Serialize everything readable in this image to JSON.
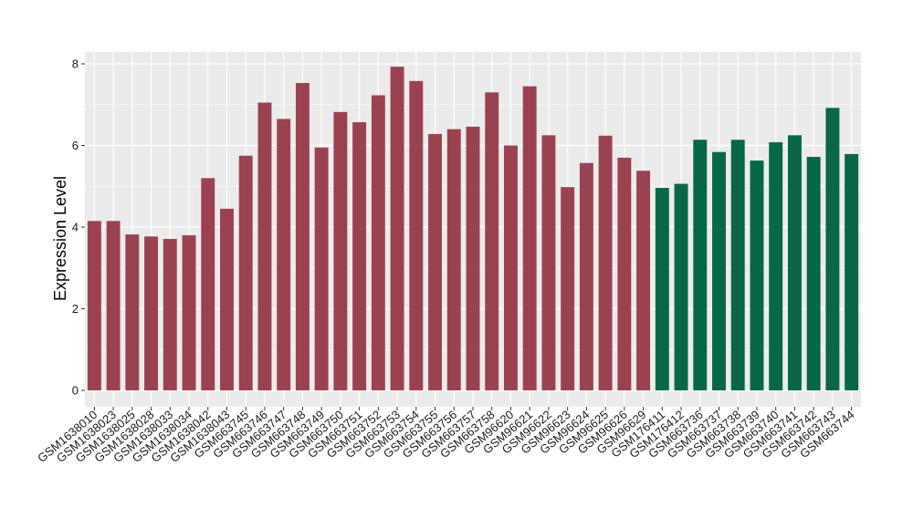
{
  "chart_data": {
    "type": "bar",
    "title": "",
    "xlabel": "",
    "ylabel": "Expression Level",
    "ylim": [
      0,
      8.3
    ],
    "yticks": [
      0,
      2,
      4,
      6,
      8
    ],
    "grid": true,
    "panel_background": "#ebebeb",
    "gridline_color": "#ffffff",
    "categories": [
      "GSM1638010",
      "GSM1638023",
      "GSM1638025",
      "GSM1638028",
      "GSM1638033",
      "GSM1638034",
      "GSM1638042",
      "GSM1638043",
      "GSM663745",
      "GSM663746",
      "GSM663747",
      "GSM663748",
      "GSM663749",
      "GSM663750",
      "GSM663751",
      "GSM663752",
      "GSM663753",
      "GSM663754",
      "GSM663755",
      "GSM663756",
      "GSM663757",
      "GSM663758",
      "GSM96620",
      "GSM96621",
      "GSM96622",
      "GSM96623",
      "GSM96624",
      "GSM96625",
      "GSM96626",
      "GSM96629",
      "GSM176411",
      "GSM176412",
      "GSM663736",
      "GSM663737",
      "GSM663738",
      "GSM663739",
      "GSM663740",
      "GSM663741",
      "GSM663742",
      "GSM663743",
      "GSM663744"
    ],
    "values": [
      4.15,
      4.15,
      3.82,
      3.77,
      3.71,
      3.8,
      5.2,
      4.45,
      5.75,
      7.05,
      6.65,
      7.53,
      5.95,
      6.82,
      6.57,
      7.23,
      7.93,
      7.58,
      6.28,
      6.4,
      6.46,
      7.3,
      6.0,
      7.45,
      6.25,
      4.98,
      5.57,
      6.24,
      5.7,
      5.38,
      4.96,
      5.06,
      6.14,
      5.84,
      6.14,
      5.63,
      6.08,
      6.25,
      5.72,
      6.92,
      5.79
    ],
    "groups": [
      "a",
      "a",
      "a",
      "a",
      "a",
      "a",
      "a",
      "a",
      "a",
      "a",
      "a",
      "a",
      "a",
      "a",
      "a",
      "a",
      "a",
      "a",
      "a",
      "a",
      "a",
      "a",
      "a",
      "a",
      "a",
      "a",
      "a",
      "a",
      "a",
      "a",
      "b",
      "b",
      "b",
      "b",
      "b",
      "b",
      "b",
      "b",
      "b",
      "b",
      "b"
    ],
    "group_colors": {
      "a": "#9b4250",
      "b": "#076746"
    }
  }
}
